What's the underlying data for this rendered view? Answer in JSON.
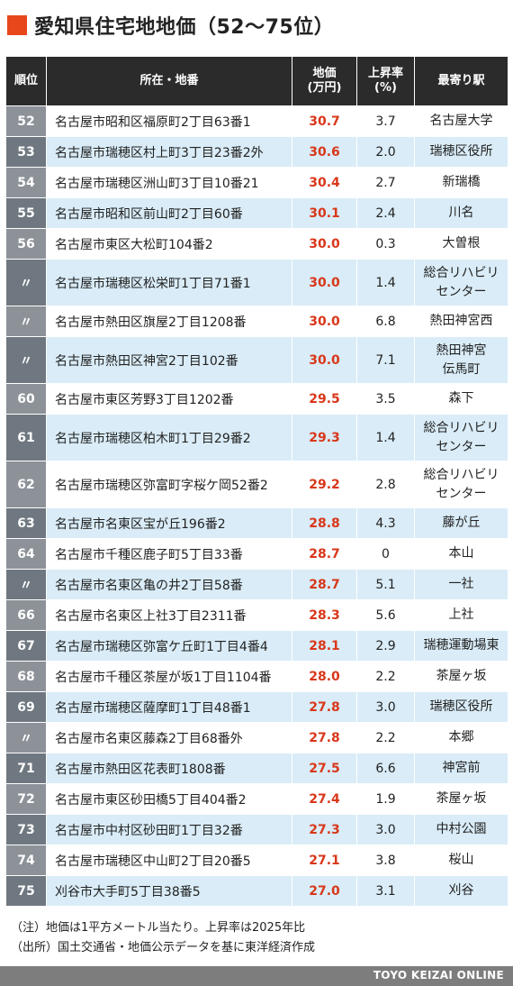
{
  "title": "愛知県住宅地地価（52〜75位）",
  "headers": {
    "rank": "順位",
    "address": "所在・地番",
    "price_line1": "地価",
    "price_line2": "(万円)",
    "rate_line1": "上昇率",
    "rate_line2": "(%)",
    "station": "最寄り駅"
  },
  "rows": [
    {
      "rank": "52",
      "address": "名古屋市昭和区福原町2丁目63番1",
      "price": "30.7",
      "rate": "3.7",
      "station": [
        "名古屋大学"
      ]
    },
    {
      "rank": "53",
      "address": "名古屋市瑞穂区村上町3丁目23番2外",
      "price": "30.6",
      "rate": "2.0",
      "station": [
        "瑞穂区役所"
      ]
    },
    {
      "rank": "54",
      "address": "名古屋市瑞穂区洲山町3丁目10番21",
      "price": "30.4",
      "rate": "2.7",
      "station": [
        "新瑞橋"
      ]
    },
    {
      "rank": "55",
      "address": "名古屋市昭和区前山町2丁目60番",
      "price": "30.1",
      "rate": "2.4",
      "station": [
        "川名"
      ]
    },
    {
      "rank": "56",
      "address": "名古屋市東区大松町104番2",
      "price": "30.0",
      "rate": "0.3",
      "station": [
        "大曽根"
      ]
    },
    {
      "rank": "〃",
      "address": "名古屋市瑞穂区松栄町1丁目71番1",
      "price": "30.0",
      "rate": "1.4",
      "station": [
        "総合リハビリ",
        "センター"
      ]
    },
    {
      "rank": "〃",
      "address": "名古屋市熱田区旗屋2丁目1208番",
      "price": "30.0",
      "rate": "6.8",
      "station": [
        "熱田神宮西"
      ]
    },
    {
      "rank": "〃",
      "address": "名古屋市熱田区神宮2丁目102番",
      "price": "30.0",
      "rate": "7.1",
      "station": [
        "熱田神宮",
        "伝馬町"
      ]
    },
    {
      "rank": "60",
      "address": "名古屋市東区芳野3丁目1202番",
      "price": "29.5",
      "rate": "3.5",
      "station": [
        "森下"
      ]
    },
    {
      "rank": "61",
      "address": "名古屋市瑞穂区柏木町1丁目29番2",
      "price": "29.3",
      "rate": "1.4",
      "station": [
        "総合リハビリ",
        "センター"
      ]
    },
    {
      "rank": "62",
      "address": "名古屋市瑞穂区弥富町字桜ケ岡52番2",
      "price": "29.2",
      "rate": "2.8",
      "station": [
        "総合リハビリ",
        "センター"
      ]
    },
    {
      "rank": "63",
      "address": "名古屋市名東区宝が丘196番2",
      "price": "28.8",
      "rate": "4.3",
      "station": [
        "藤が丘"
      ]
    },
    {
      "rank": "64",
      "address": "名古屋市千種区鹿子町5丁目33番",
      "price": "28.7",
      "rate": "0",
      "station": [
        "本山"
      ]
    },
    {
      "rank": "〃",
      "address": "名古屋市名東区亀の井2丁目58番",
      "price": "28.7",
      "rate": "5.1",
      "station": [
        "一社"
      ]
    },
    {
      "rank": "66",
      "address": "名古屋市名東区上社3丁目2311番",
      "price": "28.3",
      "rate": "5.6",
      "station": [
        "上社"
      ]
    },
    {
      "rank": "67",
      "address": "名古屋市瑞穂区弥富ケ丘町1丁目4番4",
      "price": "28.1",
      "rate": "2.9",
      "station": [
        "瑞穂運動場東"
      ]
    },
    {
      "rank": "68",
      "address": "名古屋市千種区茶屋が坂1丁目1104番",
      "price": "28.0",
      "rate": "2.2",
      "station": [
        "茶屋ヶ坂"
      ]
    },
    {
      "rank": "69",
      "address": "名古屋市瑞穂区薩摩町1丁目48番1",
      "price": "27.8",
      "rate": "3.0",
      "station": [
        "瑞穂区役所"
      ]
    },
    {
      "rank": "〃",
      "address": "名古屋市名東区藤森2丁目68番外",
      "price": "27.8",
      "rate": "2.2",
      "station": [
        "本郷"
      ]
    },
    {
      "rank": "71",
      "address": "名古屋市熱田区花表町1808番",
      "price": "27.5",
      "rate": "6.6",
      "station": [
        "神宮前"
      ]
    },
    {
      "rank": "72",
      "address": "名古屋市東区砂田橋5丁目404番2",
      "price": "27.4",
      "rate": "1.9",
      "station": [
        "茶屋ヶ坂"
      ]
    },
    {
      "rank": "73",
      "address": "名古屋市中村区砂田町1丁目32番",
      "price": "27.3",
      "rate": "3.0",
      "station": [
        "中村公園"
      ]
    },
    {
      "rank": "74",
      "address": "名古屋市瑞穂区中山町2丁目20番5",
      "price": "27.1",
      "rate": "3.8",
      "station": [
        "桜山"
      ]
    },
    {
      "rank": "75",
      "address": "刈谷市大手町5丁目38番5",
      "price": "27.0",
      "rate": "3.1",
      "station": [
        "刈谷"
      ]
    }
  ],
  "notes": {
    "note": "（注）地価は1平方メートル当たり。上昇率は2025年比",
    "source": "（出所）国土交通省・地価公示データを基に東洋経済作成"
  },
  "footer": "TOYO KEIZAI ONLINE",
  "colors": {
    "accent": "#e8471c",
    "price_text": "#d9371a",
    "header_bg": "#2b2b2b",
    "row_alt": "#d9ecf7"
  }
}
